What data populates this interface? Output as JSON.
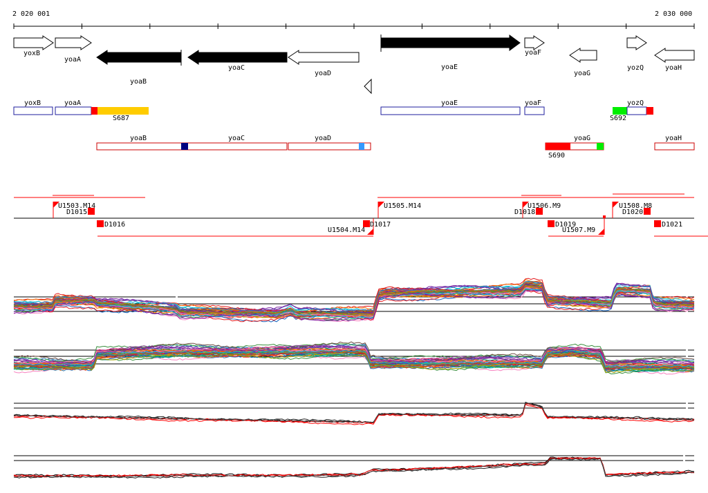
{
  "ruler": {
    "start_label": "2 020 001",
    "end_label": "2 030 000"
  },
  "genes": [
    {
      "name": "yoxB",
      "strand": "+",
      "kind": "open"
    },
    {
      "name": "yoaA",
      "strand": "+",
      "kind": "open"
    },
    {
      "name": "yoaB",
      "strand": "-",
      "kind": "filled"
    },
    {
      "name": "yoaC",
      "strand": "-",
      "kind": "filled"
    },
    {
      "name": "yoaD",
      "strand": "-",
      "kind": "open"
    },
    {
      "name": "yoaE",
      "strand": "+",
      "kind": "filled"
    },
    {
      "name": "yoaF",
      "strand": "+",
      "kind": "open"
    },
    {
      "name": "yoaG",
      "strand": "-",
      "kind": "open"
    },
    {
      "name": "yozQ",
      "strand": "+",
      "kind": "open"
    },
    {
      "name": "yoaH",
      "strand": "-",
      "kind": "open"
    }
  ],
  "annotation_track_plus": {
    "boxes": [
      "yoxB",
      "yoaA",
      "yoaE",
      "yoaF",
      "yozQ"
    ],
    "markers": [
      "S687",
      "S692"
    ]
  },
  "annotation_track_minus": {
    "boxes": [
      "yoaB",
      "yoaC",
      "yoaD",
      "yoaG",
      "yoaH"
    ],
    "markers": [
      "S690"
    ]
  },
  "segments": {
    "upper_labels": [
      "U1503.M14",
      "D1015",
      "U1505.M14",
      "U1506.M9",
      "D1018",
      "U1508.M8",
      "D1020"
    ],
    "lower_labels": [
      "D1016",
      "U1504.M14",
      "D1017",
      "D1019",
      "U1507.M9",
      "D1021"
    ]
  },
  "colors": {
    "feature_box": "#1e1e9e",
    "minus_box": "#cc0000",
    "red": "#ff0000",
    "orange": "#ffcc00",
    "green": "#00ee00",
    "navy": "#000080",
    "skyblue": "#3399ff"
  }
}
